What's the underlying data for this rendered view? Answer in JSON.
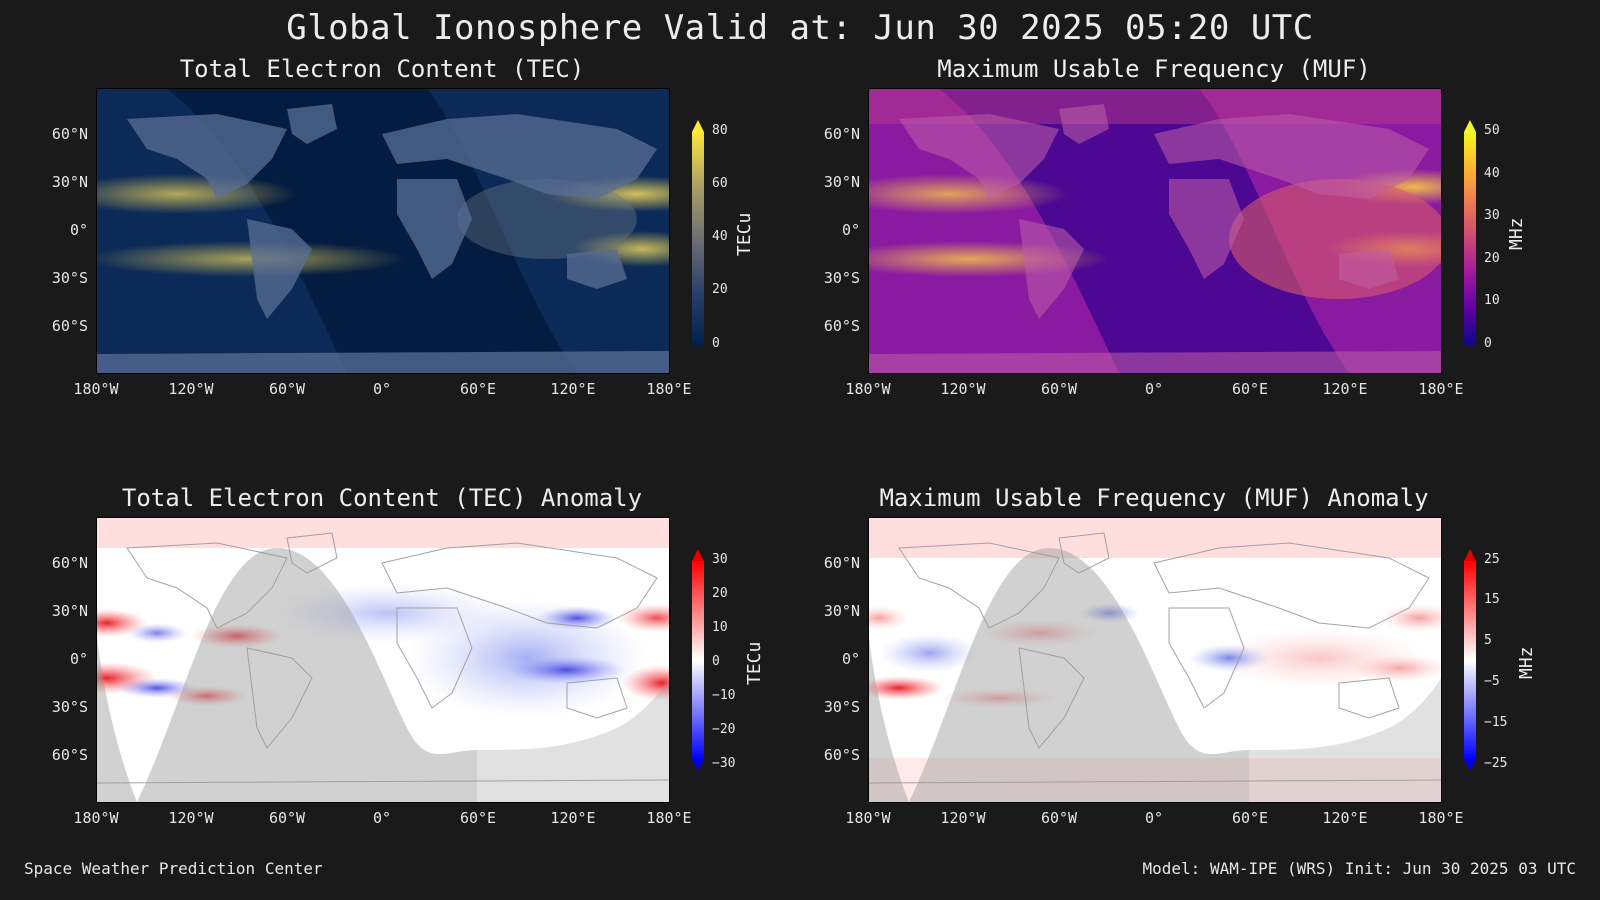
{
  "title": "Global Ionosphere Valid at: Jun 30 2025 05:20 UTC",
  "footer": {
    "left": "Space Weather Prediction Center",
    "right": "Model: WAM-IPE (WRS) Init: Jun 30 2025 03 UTC"
  },
  "axes": {
    "lat_labels": [
      "60°N",
      "30°N",
      "0°",
      "30°S",
      "60°S"
    ],
    "lon_labels": [
      "180°W",
      "120°W",
      "60°W",
      "0°",
      "60°E",
      "120°E",
      "180°E"
    ]
  },
  "panels": [
    {
      "id": "tec",
      "title": "Total Electron Content (TEC)",
      "unit": "TECu",
      "colormap": "cividis",
      "colors": [
        "#00204c",
        "#2a3f6c",
        "#57606e",
        "#8a8778",
        "#c2b464",
        "#fde737"
      ],
      "cbar_ticks": [
        "80",
        "60",
        "40",
        "20",
        "0"
      ]
    },
    {
      "id": "muf",
      "title": "Maximum Usable Frequency (MUF)",
      "unit": "MHz",
      "colormap": "plasma",
      "colors": [
        "#0d0887",
        "#5c01a6",
        "#9c179e",
        "#cc4778",
        "#ed7953",
        "#fdb42f",
        "#f0f921"
      ],
      "cbar_ticks": [
        "50",
        "40",
        "30",
        "20",
        "10",
        "0"
      ]
    },
    {
      "id": "tec-anomaly",
      "title": "Total Electron Content (TEC) Anomaly",
      "unit": "TECu",
      "colormap": "bwr",
      "colors": [
        "#0000ff",
        "#ffffff",
        "#ff0000"
      ],
      "cbar_ticks": [
        "30",
        "20",
        "10",
        "0",
        "−10",
        "−20",
        "−30"
      ]
    },
    {
      "id": "muf-anomaly",
      "title": "Maximum Usable Frequency (MUF) Anomaly",
      "unit": "MHz",
      "colormap": "bwr",
      "colors": [
        "#0000ff",
        "#ffffff",
        "#ff0000"
      ],
      "cbar_ticks": [
        "25",
        "15",
        "5",
        "−5",
        "−15",
        "−25"
      ]
    }
  ]
}
